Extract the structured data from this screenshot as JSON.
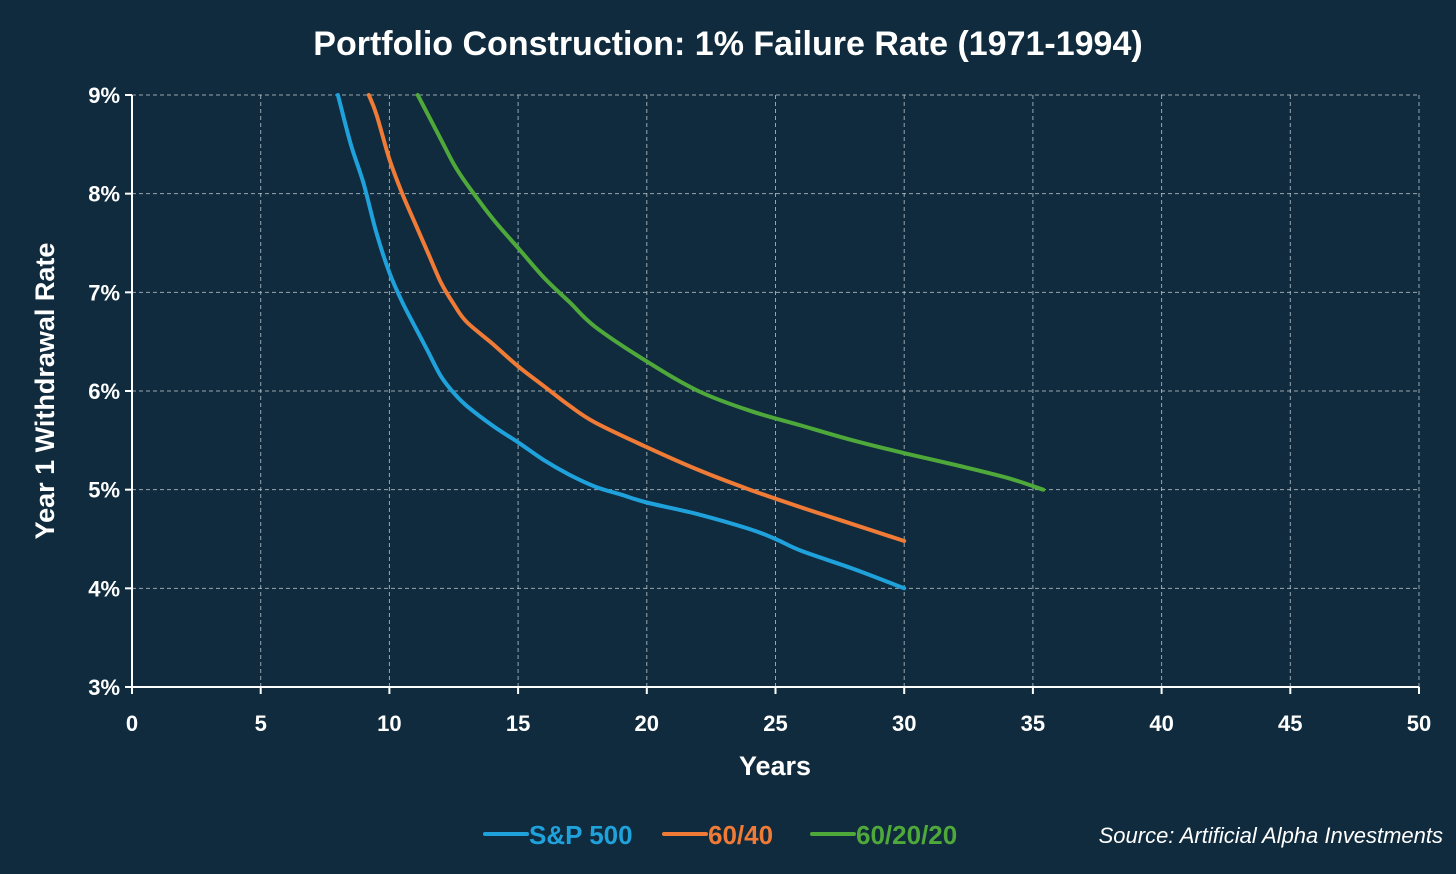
{
  "chart_data": {
    "type": "line",
    "title": "Portfolio Construction: 1% Failure Rate (1971-1994)",
    "xlabel": "Years",
    "ylabel": "Year 1 Withdrawal Rate",
    "xlim": [
      0,
      50
    ],
    "ylim": [
      3,
      9
    ],
    "xticks": [
      0,
      5,
      10,
      15,
      20,
      25,
      30,
      35,
      40,
      45,
      50
    ],
    "yticks": [
      3,
      4,
      5,
      6,
      7,
      8,
      9
    ],
    "ytick_suffix": "%",
    "grid": true,
    "series": [
      {
        "name": "S&P 500",
        "color": "#1fa2dc",
        "x": [
          8,
          8.5,
          9,
          9.5,
          10,
          10.5,
          11,
          11.5,
          12,
          12.5,
          13,
          14,
          15,
          16,
          17,
          18,
          19,
          20,
          22,
          24,
          25,
          26,
          28,
          30
        ],
        "y": [
          9.0,
          8.5,
          8.1,
          7.6,
          7.2,
          6.9,
          6.65,
          6.4,
          6.15,
          5.98,
          5.85,
          5.65,
          5.48,
          5.3,
          5.15,
          5.03,
          4.95,
          4.87,
          4.75,
          4.6,
          4.5,
          4.38,
          4.2,
          4.0
        ]
      },
      {
        "name": "60/40",
        "color": "#f07b36",
        "x": [
          9.2,
          9.5,
          10,
          10.5,
          11,
          11.5,
          12,
          12.5,
          13,
          14,
          15,
          16,
          17,
          18,
          20,
          22,
          24,
          26,
          28,
          30
        ],
        "y": [
          9.0,
          8.8,
          8.35,
          8.0,
          7.7,
          7.4,
          7.1,
          6.88,
          6.7,
          6.48,
          6.25,
          6.05,
          5.85,
          5.68,
          5.43,
          5.2,
          5.0,
          4.82,
          4.65,
          4.48
        ]
      },
      {
        "name": "60/20/20",
        "color": "#4fa83a",
        "x": [
          11.1,
          11.5,
          12,
          12.5,
          13,
          14,
          15,
          16,
          17,
          18,
          20,
          22,
          24,
          26,
          28,
          30,
          32,
          34,
          35.4
        ],
        "y": [
          9.0,
          8.8,
          8.55,
          8.3,
          8.1,
          7.75,
          7.45,
          7.15,
          6.9,
          6.65,
          6.3,
          6.0,
          5.8,
          5.65,
          5.5,
          5.37,
          5.25,
          5.12,
          5.0
        ]
      }
    ],
    "legend_position": "bottom-center"
  },
  "source": "Source: Artificial Alpha Investments"
}
